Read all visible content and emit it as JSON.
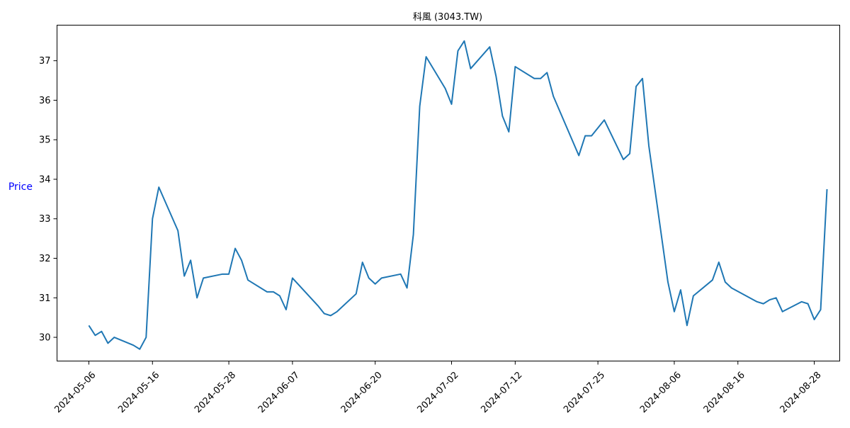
{
  "colors": {
    "line": "#1f77b4",
    "ylabel": "#0000ff",
    "axis": "#000000",
    "background": "#ffffff"
  },
  "chart_data": {
    "type": "line",
    "title": "科風 (3043.TW)",
    "xlabel": "",
    "ylabel": "Price",
    "grid": false,
    "legend": "none",
    "x_axis": {
      "type": "date",
      "range": [
        "2024-05-01",
        "2024-09-01"
      ],
      "tick_labels": [
        "2024-05-06",
        "2024-05-16",
        "2024-05-28",
        "2024-06-07",
        "2024-06-20",
        "2024-07-02",
        "2024-07-12",
        "2024-07-25",
        "2024-08-06",
        "2024-08-16",
        "2024-08-28"
      ]
    },
    "y_axis": {
      "range": [
        29.4,
        37.9
      ],
      "ticks": [
        30,
        31,
        32,
        33,
        34,
        35,
        36,
        37
      ]
    },
    "series": [
      {
        "x": [
          "2024-05-06",
          "2024-05-07",
          "2024-05-08",
          "2024-05-09",
          "2024-05-10",
          "2024-05-13",
          "2024-05-14",
          "2024-05-15",
          "2024-05-16",
          "2024-05-17",
          "2024-05-20",
          "2024-05-21",
          "2024-05-22",
          "2024-05-23",
          "2024-05-24",
          "2024-05-27",
          "2024-05-28",
          "2024-05-29",
          "2024-05-30",
          "2024-05-31",
          "2024-06-03",
          "2024-06-04",
          "2024-06-05",
          "2024-06-06",
          "2024-06-07",
          "2024-06-11",
          "2024-06-12",
          "2024-06-13",
          "2024-06-14",
          "2024-06-17",
          "2024-06-18",
          "2024-06-19",
          "2024-06-20",
          "2024-06-21",
          "2024-06-24",
          "2024-06-25",
          "2024-06-26",
          "2024-06-27",
          "2024-06-28",
          "2024-07-01",
          "2024-07-02",
          "2024-07-03",
          "2024-07-04",
          "2024-07-05",
          "2024-07-08",
          "2024-07-09",
          "2024-07-10",
          "2024-07-11",
          "2024-07-12",
          "2024-07-15",
          "2024-07-16",
          "2024-07-17",
          "2024-07-18",
          "2024-07-22",
          "2024-07-23",
          "2024-07-24",
          "2024-07-26",
          "2024-07-29",
          "2024-07-30",
          "2024-07-31",
          "2024-08-01",
          "2024-08-02",
          "2024-08-05",
          "2024-08-06",
          "2024-08-07",
          "2024-08-08",
          "2024-08-09",
          "2024-08-12",
          "2024-08-13",
          "2024-08-14",
          "2024-08-15",
          "2024-08-19",
          "2024-08-20",
          "2024-08-21",
          "2024-08-22",
          "2024-08-23",
          "2024-08-26",
          "2024-08-27",
          "2024-08-28",
          "2024-08-29",
          "2024-08-30"
        ],
        "values": [
          30.3,
          30.05,
          30.15,
          29.85,
          30.0,
          29.8,
          29.7,
          30.0,
          33.0,
          33.8,
          32.7,
          31.55,
          31.95,
          31.0,
          31.5,
          31.6,
          31.6,
          32.25,
          31.95,
          31.45,
          31.15,
          31.15,
          31.05,
          30.7,
          31.5,
          30.8,
          30.6,
          30.55,
          30.65,
          31.1,
          31.9,
          31.5,
          31.35,
          31.5,
          31.6,
          31.25,
          32.6,
          35.85,
          37.1,
          36.3,
          35.9,
          37.25,
          37.5,
          36.8,
          37.35,
          36.6,
          35.6,
          35.2,
          36.85,
          36.55,
          36.55,
          36.7,
          36.1,
          34.6,
          35.1,
          35.1,
          35.5,
          34.5,
          34.65,
          36.35,
          36.55,
          34.85,
          31.4,
          30.65,
          31.2,
          30.3,
          31.05,
          31.45,
          31.9,
          31.4,
          31.25,
          30.9,
          30.85,
          30.95,
          31.0,
          30.65,
          30.9,
          30.85,
          30.45,
          30.7,
          33.75
        ]
      }
    ]
  }
}
